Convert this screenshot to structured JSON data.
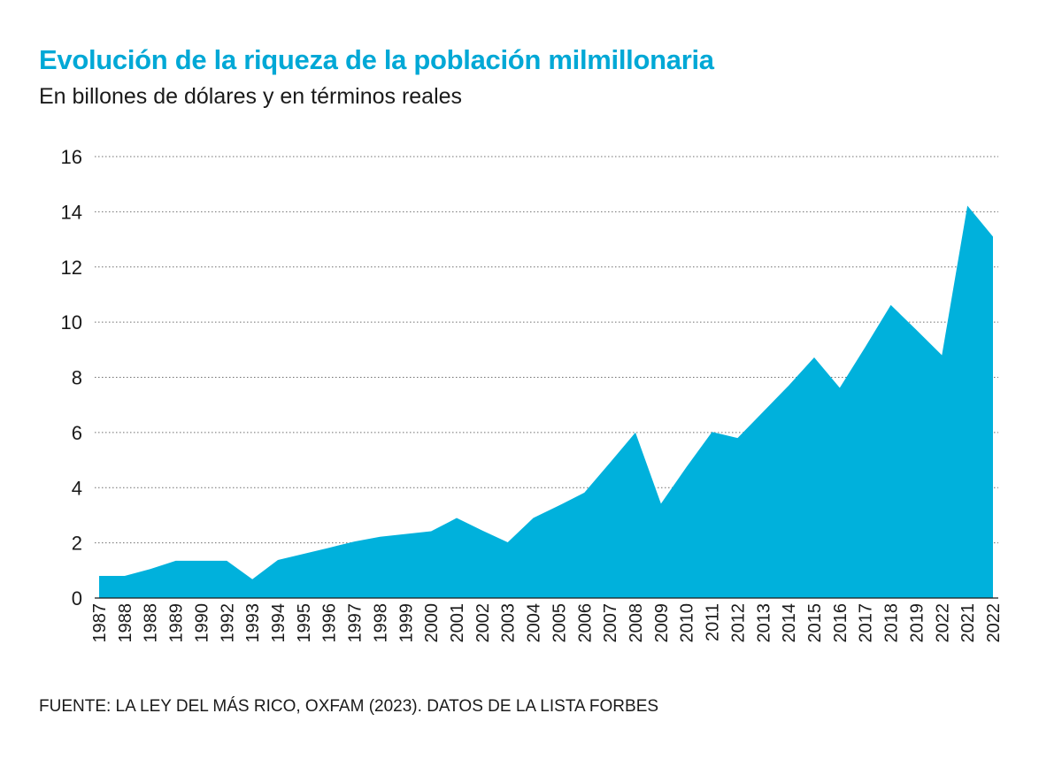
{
  "chart_data": {
    "type": "area",
    "title": "Evolución de la riqueza de la población milmillonaria",
    "subtitle": "En billones de dólares y en términos reales",
    "source": "FUENTE: LA LEY DEL MÁS RICO, OXFAM (2023). DATOS DE LA LISTA FORBES",
    "xlabel": "",
    "ylabel": "",
    "ylim": [
      0,
      16
    ],
    "yticks": [
      0,
      2,
      4,
      6,
      8,
      10,
      12,
      14,
      16
    ],
    "grid": "dotted-horizontal",
    "fill_color": "#00b1dc",
    "categories": [
      "1987",
      "1988",
      "1988",
      "1989",
      "1990",
      "1992",
      "1993",
      "1994",
      "1995",
      "1996",
      "1997",
      "1998",
      "1999",
      "2000",
      "2001",
      "2002",
      "2003",
      "2004",
      "2005",
      "2006",
      "2007",
      "2008",
      "2009",
      "2010",
      "2011",
      "2012",
      "2013",
      "2014",
      "2015",
      "2016",
      "2017",
      "2018",
      "2019",
      "2022",
      "2021",
      "2022"
    ],
    "values": [
      0.8,
      0.8,
      1.05,
      1.35,
      1.35,
      1.35,
      0.68,
      1.38,
      1.6,
      1.82,
      2.05,
      2.22,
      2.32,
      2.42,
      2.9,
      2.45,
      2.02,
      2.9,
      3.35,
      3.82,
      4.9,
      6.0,
      3.42,
      4.75,
      6.02,
      5.8,
      6.75,
      7.7,
      8.72,
      7.62,
      9.1,
      10.62,
      9.72,
      8.8,
      14.22,
      13.1
    ]
  }
}
